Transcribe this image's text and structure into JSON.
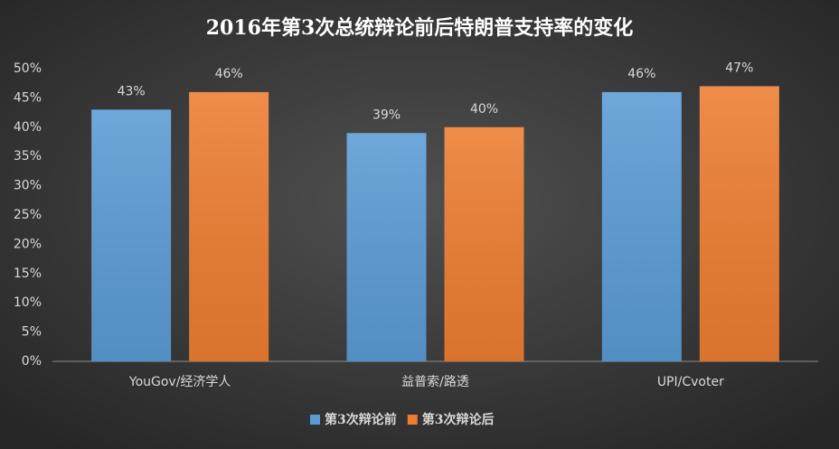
{
  "chart_data": {
    "type": "bar",
    "title": "2016年第3次总统辩论前后特朗普支持率的变化",
    "categories": [
      "YouGov/经济学人",
      "益普索/路透",
      "UPI/Cvoter"
    ],
    "series": [
      {
        "name": "第3次辩论前",
        "color": "#5b9bd5",
        "values": [
          43,
          39,
          46
        ],
        "value_labels": [
          "43%",
          "39%",
          "46%"
        ]
      },
      {
        "name": "第3次辩论后",
        "color": "#ed7d31",
        "values": [
          46,
          40,
          47
        ],
        "value_labels": [
          "46%",
          "40%",
          "47%"
        ]
      }
    ],
    "ylim": [
      0,
      50
    ],
    "yticks": [
      {
        "value": 0,
        "label": "0%"
      },
      {
        "value": 5,
        "label": "5%"
      },
      {
        "value": 10,
        "label": "10%"
      },
      {
        "value": 15,
        "label": "15%"
      },
      {
        "value": 20,
        "label": "20%"
      },
      {
        "value": 25,
        "label": "25%"
      },
      {
        "value": 30,
        "label": "30%"
      },
      {
        "value": 35,
        "label": "35%"
      },
      {
        "value": 40,
        "label": "40%"
      },
      {
        "value": 45,
        "label": "45%"
      },
      {
        "value": 50,
        "label": "50%"
      }
    ],
    "grid": false,
    "legend": "bottom"
  }
}
